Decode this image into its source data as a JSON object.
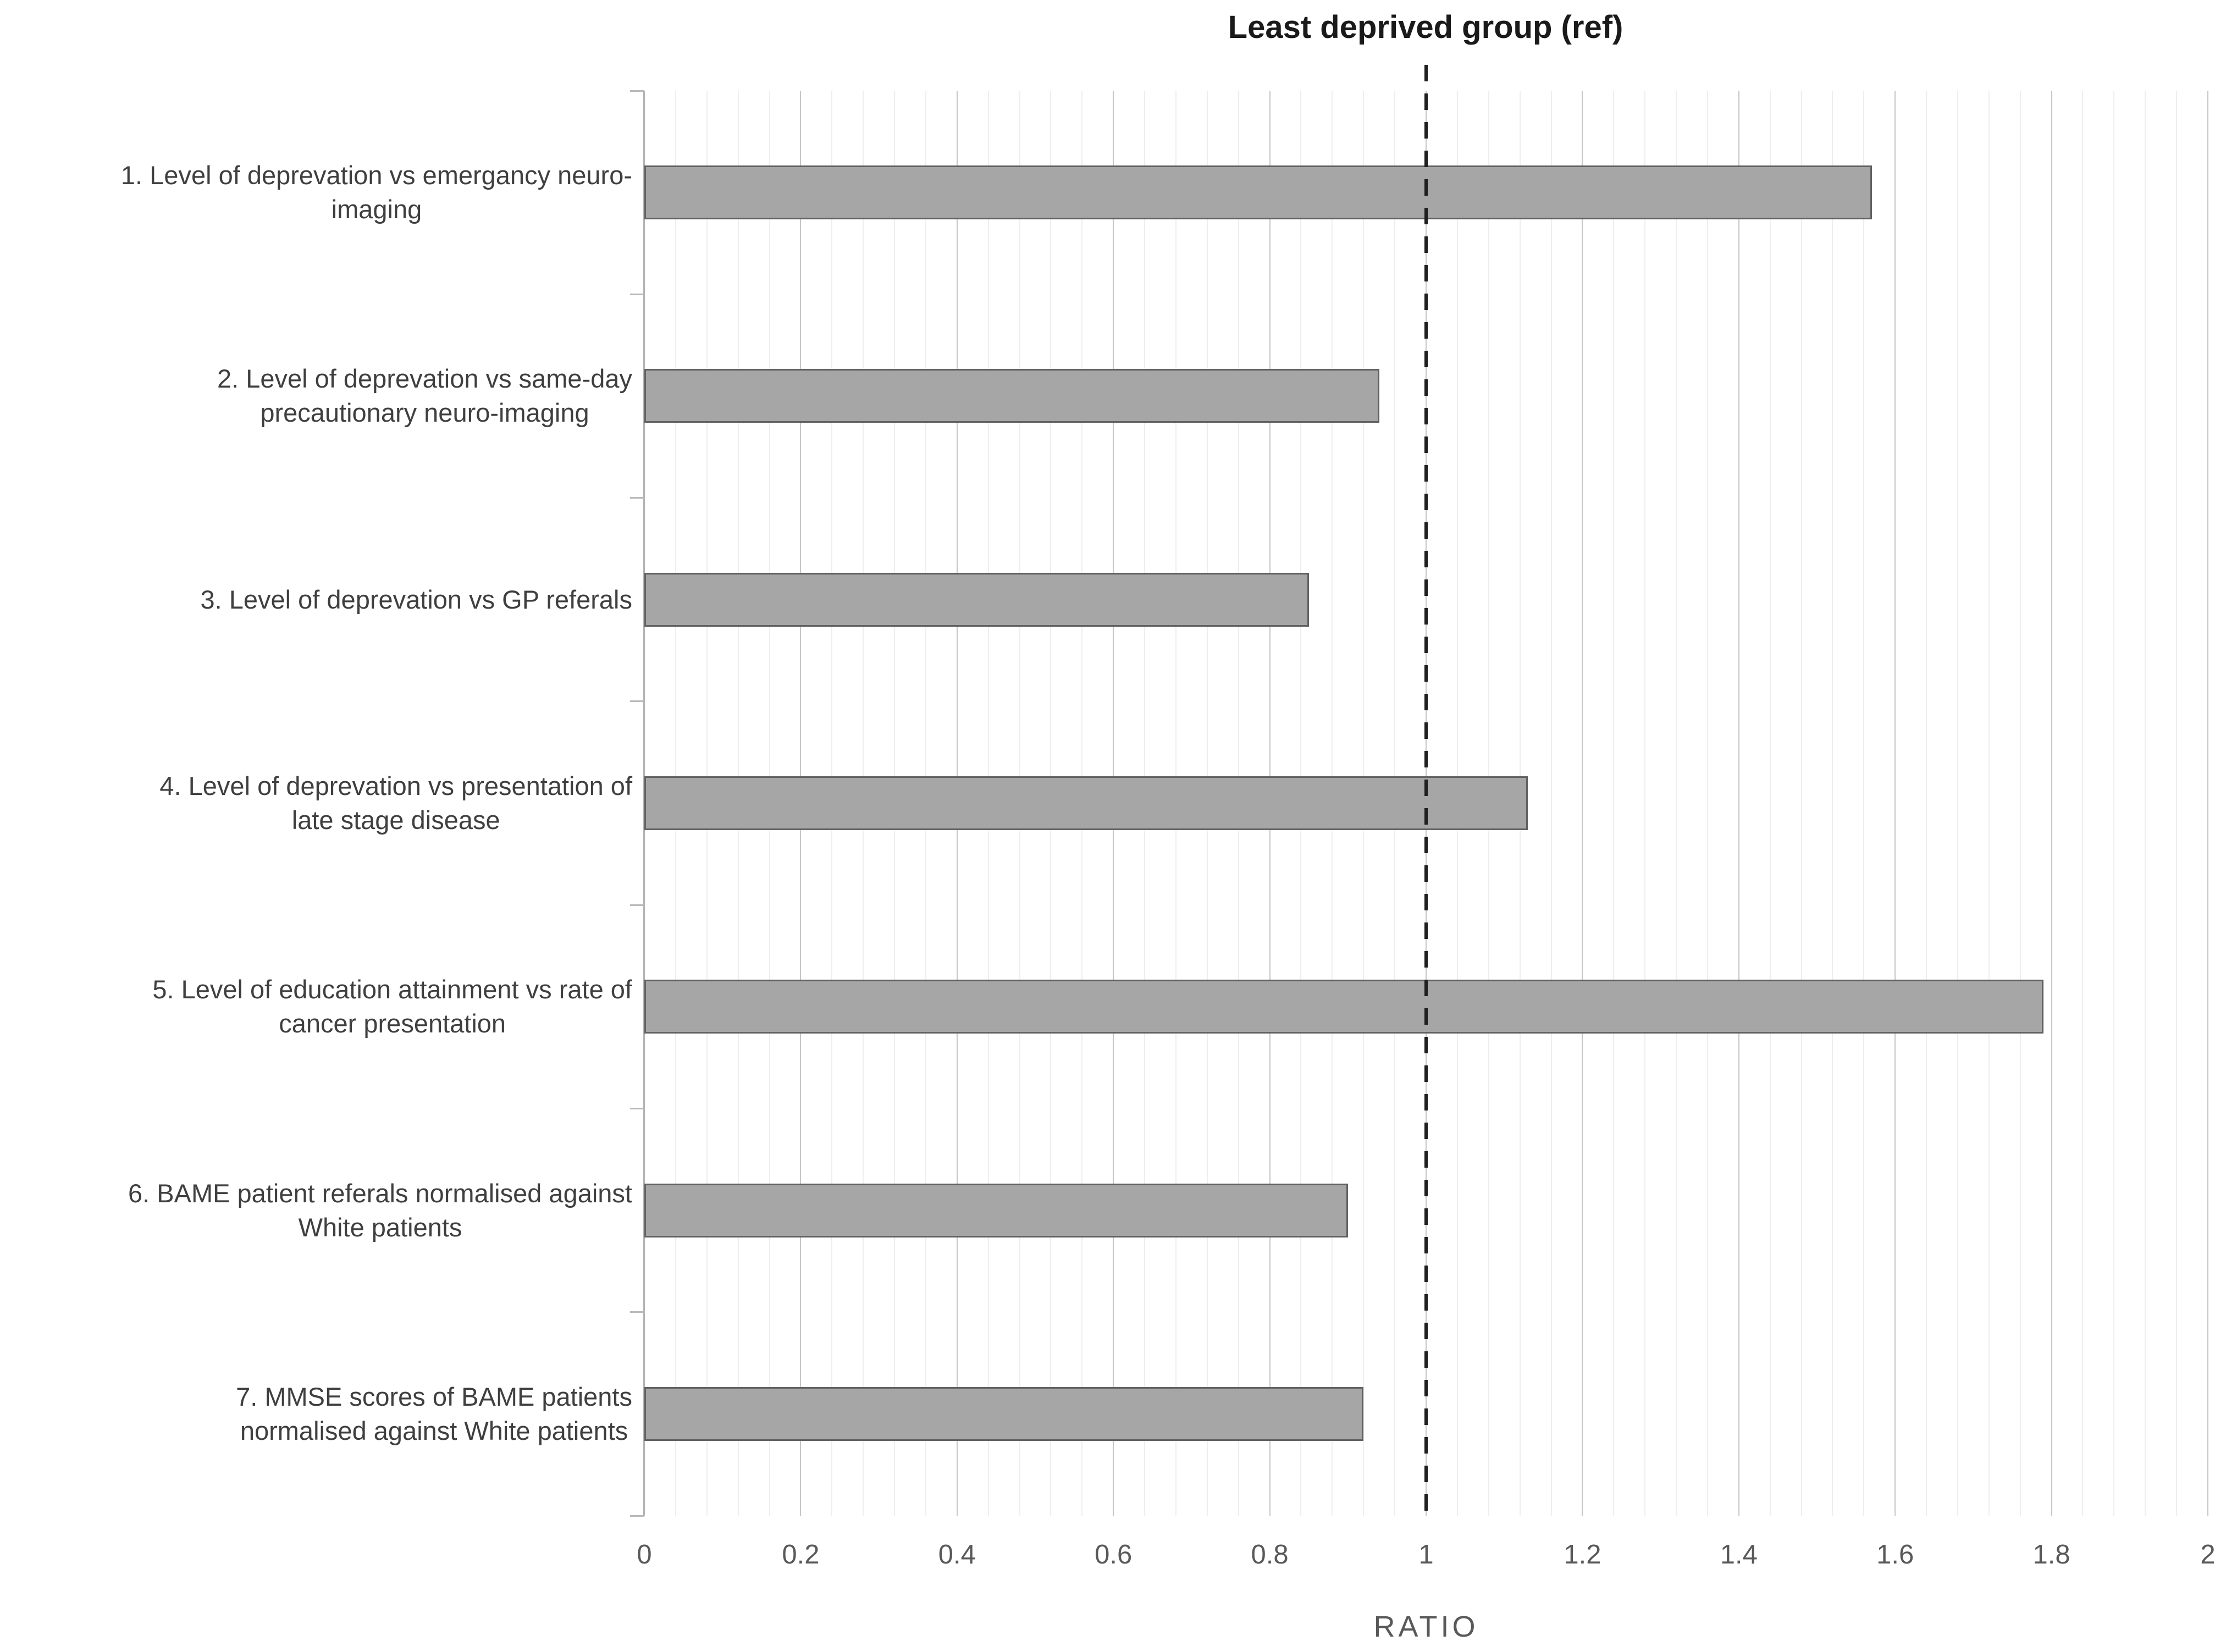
{
  "chart_data": {
    "type": "bar",
    "orientation": "horizontal",
    "title": "Least deprived group (ref)",
    "xlabel": "RATIO",
    "xlim": [
      0,
      2
    ],
    "x_major_tick_interval": 0.2,
    "x_minor_tick_interval": 0.04,
    "x_tick_labels": [
      "0",
      "0.2",
      "0.4",
      "0.6",
      "0.8",
      "1",
      "1.2",
      "1.4",
      "1.6",
      "1.8",
      "2"
    ],
    "grid": "vertical, major and minor",
    "reference_line": {
      "x": 1,
      "style": "dashed",
      "color": "#1f1f1f",
      "label": "Least deprived group (ref)"
    },
    "categories": [
      [
        "1. Level of deprevation vs emergancy neuro-",
        "imaging"
      ],
      [
        "2. Level of deprevation vs same-day",
        "precautionary neuro-imaging"
      ],
      [
        "3. Level of deprevation vs GP referals"
      ],
      [
        "4. Level of deprevation vs presentation of",
        "late stage disease"
      ],
      [
        "5. Level of education attainment vs rate of",
        "cancer presentation"
      ],
      [
        "6. BAME patient referals normalised against",
        "White patients"
      ],
      [
        "7. MMSE scores of BAME patients",
        "normalised against White patients"
      ]
    ],
    "values": [
      1.57,
      0.94,
      0.85,
      1.13,
      1.79,
      0.9,
      0.92
    ],
    "bar_color": "#a6a6a6",
    "bar_border_color": "#616161"
  }
}
